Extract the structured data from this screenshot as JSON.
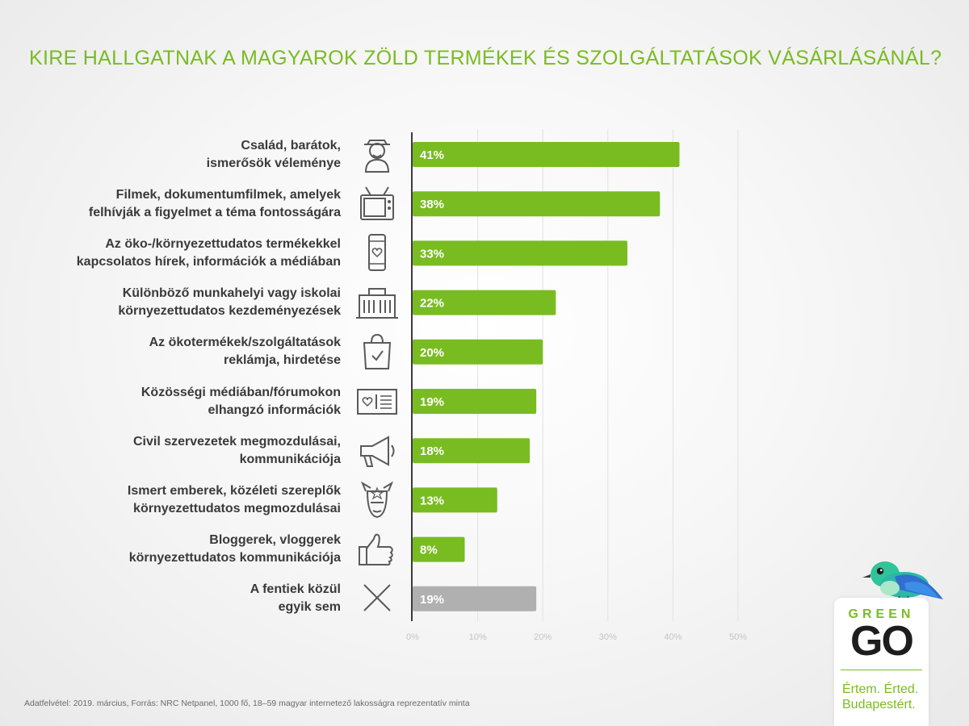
{
  "colors": {
    "accent": "#79bc22",
    "none_bar": "#b0b0b0",
    "axis": "#3c3c3c",
    "icon": "#5a5a5a",
    "grid": "#e2e2e2",
    "tick": "#c4c4c4"
  },
  "title": "KIRE HALLGATNAK A MAGYAROK ZÖLD TERMÉKEK ÉS SZOLGÁLTATÁSOK VÁSÁRLÁSÁNÁL?",
  "rows": [
    {
      "label": [
        "Család, barátok,",
        "ismerősök véleménye"
      ],
      "icon": "person-icon",
      "value_label": "41%"
    },
    {
      "label": [
        "Filmek, dokumentumfilmek, amelyek",
        "felhívják a figyelmet a téma fontosságára"
      ],
      "icon": "tv-icon",
      "value_label": "38%"
    },
    {
      "label": [
        "Az öko-/környezettudatos termékekkel",
        "kapcsolatos hírek, információk a médiában"
      ],
      "icon": "phone-heart-icon",
      "value_label": "33%"
    },
    {
      "label": [
        "Különböző munkahelyi vagy iskolai",
        "környezettudatos kezdeményezések"
      ],
      "icon": "building-icon",
      "value_label": "22%"
    },
    {
      "label": [
        "Az ökotermékek/szolgáltatások",
        "reklámja, hirdetése"
      ],
      "icon": "shopping-bag-icon",
      "value_label": "20%"
    },
    {
      "label": [
        "Közösségi médiában/fórumokon",
        "elhangzó információk"
      ],
      "icon": "social-post-icon",
      "value_label": "19%"
    },
    {
      "label": [
        "Civil szervezetek megmozdulásai,",
        "kommunikációja"
      ],
      "icon": "megaphone-icon",
      "value_label": "18%"
    },
    {
      "label": [
        "Ismert emberek, közéleti szereplők",
        "környezettudatos megmozdulásai"
      ],
      "icon": "celebrity-icon",
      "value_label": "13%"
    },
    {
      "label": [
        "Bloggerek, vloggerek",
        "környezettudatos kommunikációja"
      ],
      "icon": "thumbs-up-icon",
      "value_label": "8%"
    },
    {
      "label": [
        "A fentiek közül",
        "egyik sem"
      ],
      "icon": "x-icon",
      "value_label": "19%"
    }
  ],
  "chart_data": {
    "type": "bar",
    "orientation": "horizontal",
    "title": "KIRE HALLGATNAK A MAGYAROK ZÖLD TERMÉKEK ÉS SZOLGÁLTATÁSOK VÁSÁRLÁSÁNÁL?",
    "categories": [
      "Család, barátok, ismerősök véleménye",
      "Filmek, dokumentumfilmek, amelyek felhívják a figyelmet a téma fontosságára",
      "Az öko-/környezettudatos termékekkel kapcsolatos hírek, információk a médiában",
      "Különböző munkahelyi vagy iskolai környezettudatos kezdeményezések",
      "Az ökotermékek/szolgáltatások reklámja, hirdetése",
      "Közösségi médiában/fórumokon elhangzó információk",
      "Civil szervezetek megmozdulásai, kommunikációja",
      "Ismert emberek, közéleti szereplők környezettudatos megmozdulásai",
      "Bloggerek, vloggerek környezettudatos kommunikációja",
      "A fentiek közül egyik sem"
    ],
    "values": [
      41,
      38,
      33,
      22,
      20,
      19,
      18,
      13,
      8,
      19
    ],
    "xlim": [
      0,
      50
    ],
    "xticks": [
      0,
      10,
      20,
      30,
      40,
      50
    ],
    "xtick_labels": [
      "0%",
      "10%",
      "20%",
      "30%",
      "40%",
      "50%"
    ],
    "grid": true,
    "legend": "none"
  },
  "source": "Adatfelvétel: 2019. március, Forrás: NRC Netpanel, 1000 fő, 18–59 magyar internetező lakosságra reprezentatív minta",
  "logo": {
    "wordmark_top": "GREEN",
    "wordmark_bottom": "GO",
    "slogan": [
      "Értem. Érted.",
      "Budapestért."
    ]
  }
}
